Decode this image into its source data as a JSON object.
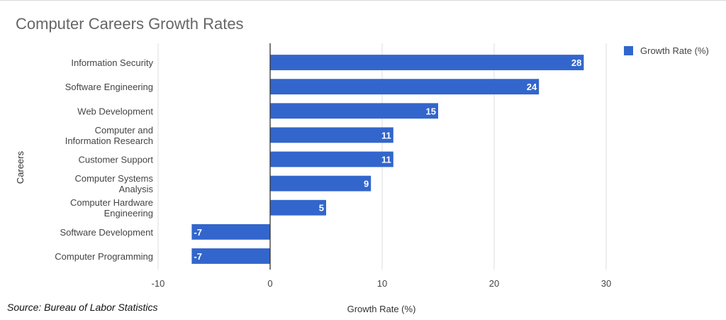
{
  "chart_data": {
    "type": "bar",
    "orientation": "horizontal",
    "title": "Computer Careers Growth Rates",
    "xlabel": "Growth Rate (%)",
    "ylabel": "Careers",
    "categories": [
      [
        "Information Security"
      ],
      [
        "Software Engineering"
      ],
      [
        "Web Development"
      ],
      [
        "Computer and",
        "Information Research"
      ],
      [
        "Customer Support"
      ],
      [
        "Computer Systems",
        "Analysis"
      ],
      [
        "Computer Hardware",
        "Engineering"
      ],
      [
        "Software Development"
      ],
      [
        "Computer Programming"
      ]
    ],
    "series": [
      {
        "name": "Growth Rate (%)",
        "values": [
          28,
          24,
          15,
          11,
          11,
          9,
          5,
          -7,
          -7
        ],
        "color": "#3366cc"
      }
    ],
    "xlim": [
      -10,
      30
    ],
    "xticks": [
      -10,
      0,
      10,
      20,
      30
    ],
    "grid": true,
    "legend_position": "top-right",
    "data_labels": true
  },
  "source_note": "Source: Bureau of Labor Statistics",
  "colors": {
    "bar": "#3366cc",
    "grid": "#dddddd",
    "zero_axis": "#333333"
  }
}
